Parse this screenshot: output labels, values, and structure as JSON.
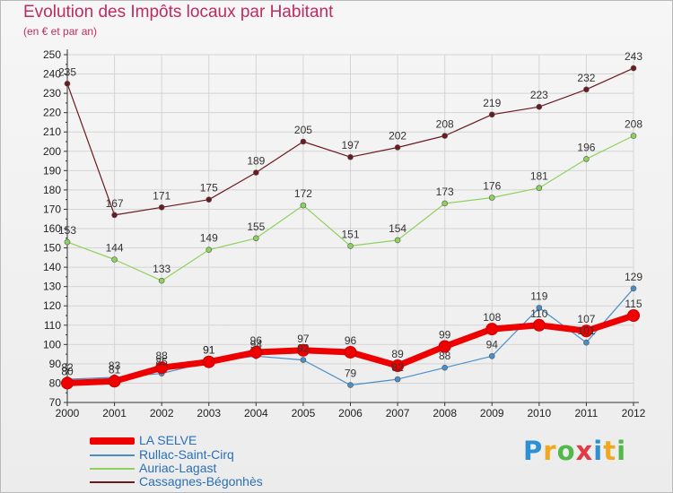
{
  "header": {
    "title": "Evolution des Impôts locaux par Habitant",
    "subtitle": "(en € et par an)"
  },
  "brand": {
    "text": "Proxiti",
    "colors": [
      "#2e8fd4",
      "#f0a81e",
      "#52b848",
      "#e23b45",
      "#2e8fd4",
      "#f0a81e",
      "#52b848"
    ]
  },
  "chart_data": {
    "type": "line",
    "title": "Evolution des Impôts locaux par Habitant",
    "subtitle": "(en € et par an)",
    "xlabel": "",
    "ylabel": "",
    "categories": [
      "2000",
      "2001",
      "2002",
      "2003",
      "2004",
      "2005",
      "2006",
      "2007",
      "2008",
      "2009",
      "2010",
      "2011",
      "2012"
    ],
    "ylim": [
      70,
      250
    ],
    "yticks": [
      70,
      80,
      90,
      100,
      110,
      120,
      130,
      140,
      150,
      160,
      170,
      180,
      190,
      200,
      210,
      220,
      230,
      240,
      250
    ],
    "grid": true,
    "legend_position": "bottom-left",
    "series": [
      {
        "name": "Cassagnes-Bégonhès",
        "color": "#6b1a1f",
        "values": [
          235,
          167,
          171,
          175,
          189,
          205,
          197,
          202,
          208,
          219,
          223,
          232,
          243
        ]
      },
      {
        "name": "Auriac-Lagast",
        "color": "#8fd15f",
        "values": [
          153,
          144,
          133,
          149,
          155,
          172,
          151,
          154,
          173,
          176,
          181,
          196,
          208
        ]
      },
      {
        "name": "Rullac-Saint-Cirq",
        "color": "#4a8ec8",
        "values": [
          82,
          83,
          85,
          91,
          94,
          92,
          79,
          82,
          88,
          94,
          119,
          101,
          129
        ]
      },
      {
        "name": "LA SELVE",
        "color": "#ee0000",
        "values": [
          80,
          81,
          88,
          91,
          96,
          97,
          96,
          89,
          99,
          108,
          110,
          107,
          115
        ]
      }
    ],
    "data_labels": {
      "Cassagnes-Bégonhès": [
        "235",
        "167",
        "171",
        "175",
        "189",
        "205",
        "197",
        "202",
        "208",
        "219",
        "223",
        "232",
        "243"
      ],
      "Auriac-Lagast": [
        "153",
        "144",
        "133",
        "149",
        "155",
        "172",
        "151",
        "154",
        "173",
        "176",
        "181",
        "196",
        "208"
      ],
      "Rullac-Saint-Cirq": [
        "82",
        "83",
        "85",
        "91",
        "94",
        "92",
        "79",
        "82",
        "88",
        "94",
        "119",
        "101",
        "129"
      ],
      "LA SELVE": [
        "80",
        "81",
        "88",
        "91",
        "96",
        "97",
        "96",
        "89",
        "99",
        "108",
        "110",
        "107",
        "115"
      ]
    }
  },
  "legend": [
    {
      "label": "LA SELVE",
      "color": "#ee0000",
      "thick": true
    },
    {
      "label": "Rullac-Saint-Cirq",
      "color": "#4a8ec8",
      "thick": false
    },
    {
      "label": "Auriac-Lagast",
      "color": "#8fd15f",
      "thick": false
    },
    {
      "label": "Cassagnes-Bégonhès",
      "color": "#6b1a1f",
      "thick": false
    }
  ],
  "colors": {
    "title": "#c02a61",
    "grid": "#d4d4d4",
    "axis": "#333333",
    "tick_label": "#222222",
    "data_label": "#333333"
  }
}
